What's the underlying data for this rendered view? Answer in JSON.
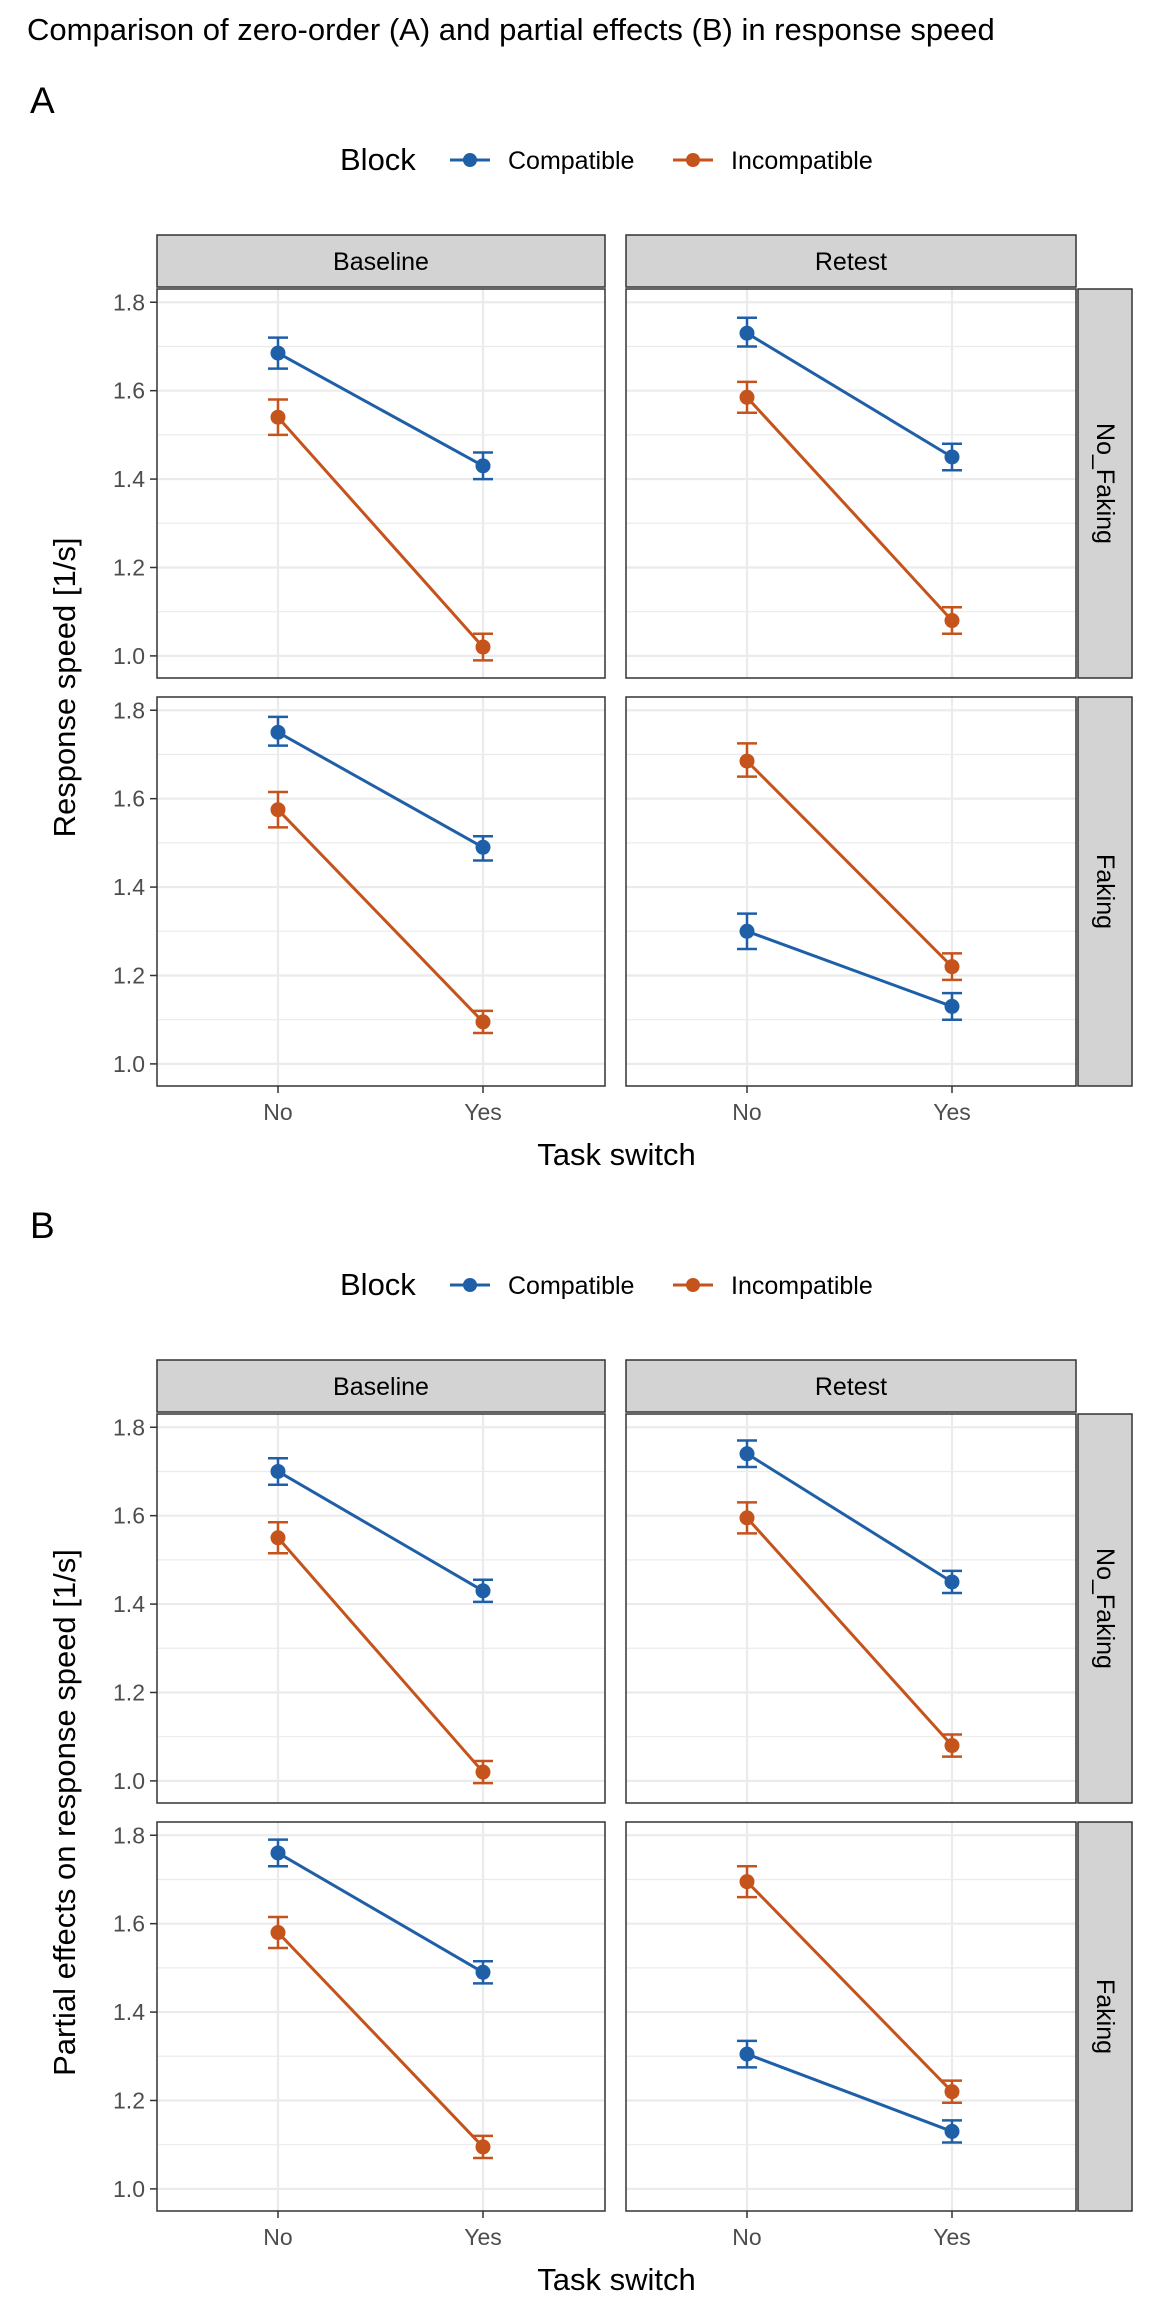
{
  "title": "Comparison of zero-order (A) and partial effects (B) in response speed",
  "colors": {
    "Compatible": "#1f5fa8",
    "Incompatible": "#c5531c",
    "strip_fill": "#d3d3d3",
    "grid": "#ebebeb",
    "panel_border": "#333333"
  },
  "chart_data": [
    {
      "panel_tag": "A",
      "type": "line",
      "legend_title": "Block",
      "legend_placement": "top",
      "series_names": [
        "Compatible",
        "Incompatible"
      ],
      "xlabel": "Task switch",
      "ylabel": "Response speed [1/s]",
      "categories": [
        "No",
        "Yes"
      ],
      "col_facets": [
        "Baseline",
        "Retest"
      ],
      "row_facets": [
        "No_Faking",
        "Faking"
      ],
      "ylim": [
        0.95,
        1.83
      ],
      "yticks": [
        1.0,
        1.2,
        1.4,
        1.6,
        1.8
      ],
      "ytick_labels": [
        "1.0",
        "1.2",
        "1.4",
        "1.6",
        "1.8"
      ],
      "grid": true,
      "facets": [
        {
          "col": "Baseline",
          "row": "No_Faking",
          "series": [
            {
              "name": "Compatible",
              "values": [
                1.685,
                1.43
              ],
              "lower": [
                1.65,
                1.4
              ],
              "upper": [
                1.72,
                1.46
              ]
            },
            {
              "name": "Incompatible",
              "values": [
                1.54,
                1.02
              ],
              "lower": [
                1.5,
                0.99
              ],
              "upper": [
                1.58,
                1.05
              ]
            }
          ]
        },
        {
          "col": "Retest",
          "row": "No_Faking",
          "series": [
            {
              "name": "Compatible",
              "values": [
                1.73,
                1.45
              ],
              "lower": [
                1.7,
                1.42
              ],
              "upper": [
                1.765,
                1.48
              ]
            },
            {
              "name": "Incompatible",
              "values": [
                1.585,
                1.08
              ],
              "lower": [
                1.55,
                1.05
              ],
              "upper": [
                1.62,
                1.11
              ]
            }
          ]
        },
        {
          "col": "Baseline",
          "row": "Faking",
          "series": [
            {
              "name": "Compatible",
              "values": [
                1.75,
                1.49
              ],
              "lower": [
                1.72,
                1.46
              ],
              "upper": [
                1.785,
                1.515
              ]
            },
            {
              "name": "Incompatible",
              "values": [
                1.575,
                1.095
              ],
              "lower": [
                1.535,
                1.07
              ],
              "upper": [
                1.615,
                1.12
              ]
            }
          ]
        },
        {
          "col": "Retest",
          "row": "Faking",
          "series": [
            {
              "name": "Compatible",
              "values": [
                1.3,
                1.13
              ],
              "lower": [
                1.26,
                1.1
              ],
              "upper": [
                1.34,
                1.16
              ]
            },
            {
              "name": "Incompatible",
              "values": [
                1.685,
                1.22
              ],
              "lower": [
                1.65,
                1.19
              ],
              "upper": [
                1.725,
                1.25
              ]
            }
          ]
        }
      ]
    },
    {
      "panel_tag": "B",
      "type": "line",
      "legend_title": "Block",
      "legend_placement": "top",
      "series_names": [
        "Compatible",
        "Incompatible"
      ],
      "xlabel": "Task switch",
      "ylabel": "Partial effects on response speed [1/s]",
      "categories": [
        "No",
        "Yes"
      ],
      "col_facets": [
        "Baseline",
        "Retest"
      ],
      "row_facets": [
        "No_Faking",
        "Faking"
      ],
      "ylim": [
        0.95,
        1.83
      ],
      "yticks": [
        1.0,
        1.2,
        1.4,
        1.6,
        1.8
      ],
      "ytick_labels": [
        "1.0",
        "1.2",
        "1.4",
        "1.6",
        "1.8"
      ],
      "grid": true,
      "facets": [
        {
          "col": "Baseline",
          "row": "No_Faking",
          "series": [
            {
              "name": "Compatible",
              "values": [
                1.7,
                1.43
              ],
              "lower": [
                1.67,
                1.405
              ],
              "upper": [
                1.73,
                1.455
              ]
            },
            {
              "name": "Incompatible",
              "values": [
                1.55,
                1.02
              ],
              "lower": [
                1.515,
                0.995
              ],
              "upper": [
                1.585,
                1.045
              ]
            }
          ]
        },
        {
          "col": "Retest",
          "row": "No_Faking",
          "series": [
            {
              "name": "Compatible",
              "values": [
                1.74,
                1.45
              ],
              "lower": [
                1.71,
                1.425
              ],
              "upper": [
                1.77,
                1.475
              ]
            },
            {
              "name": "Incompatible",
              "values": [
                1.595,
                1.08
              ],
              "lower": [
                1.56,
                1.055
              ],
              "upper": [
                1.63,
                1.105
              ]
            }
          ]
        },
        {
          "col": "Baseline",
          "row": "Faking",
          "series": [
            {
              "name": "Compatible",
              "values": [
                1.76,
                1.49
              ],
              "lower": [
                1.73,
                1.465
              ],
              "upper": [
                1.79,
                1.515
              ]
            },
            {
              "name": "Incompatible",
              "values": [
                1.58,
                1.095
              ],
              "lower": [
                1.545,
                1.07
              ],
              "upper": [
                1.615,
                1.12
              ]
            }
          ]
        },
        {
          "col": "Retest",
          "row": "Faking",
          "series": [
            {
              "name": "Compatible",
              "values": [
                1.305,
                1.13
              ],
              "lower": [
                1.275,
                1.105
              ],
              "upper": [
                1.335,
                1.155
              ]
            },
            {
              "name": "Incompatible",
              "values": [
                1.695,
                1.22
              ],
              "lower": [
                1.66,
                1.195
              ],
              "upper": [
                1.73,
                1.245
              ]
            }
          ]
        }
      ]
    }
  ]
}
